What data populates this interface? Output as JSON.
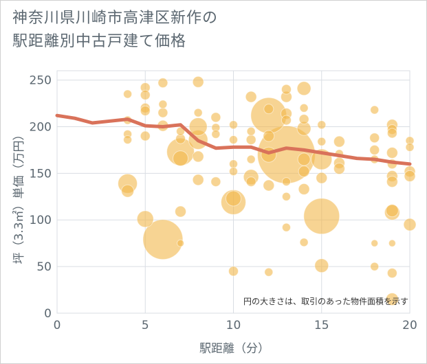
{
  "title_lines": [
    "神奈川県川崎市高津区新作の",
    "駅距離別中古戸建て価格"
  ],
  "chart_data": {
    "type": "scatter",
    "xlabel": "駅距離（分）",
    "ylabel": "坪（3.3㎡）単価（万円）",
    "xlim": [
      0,
      20
    ],
    "ylim": [
      0,
      260
    ],
    "xticks": [
      "0",
      "5",
      "10",
      "15",
      "20"
    ],
    "yticks": [
      "0",
      "50",
      "100",
      "150",
      "200",
      "250"
    ],
    "grid": true,
    "annotation": "円の大きさは、取引のあった物件面積を示す",
    "colors": {
      "bubble": "#f2b84b",
      "line": "#d9725a",
      "grid": "#d9dde3"
    },
    "trend": {
      "x": [
        0,
        1,
        2,
        3,
        4,
        5,
        6,
        7,
        8,
        9,
        10,
        11,
        12,
        13,
        14,
        15,
        16,
        17,
        18,
        19,
        20
      ],
      "y": [
        212,
        209,
        204,
        206,
        208,
        201,
        200,
        202,
        185,
        177,
        178,
        178,
        172,
        177,
        175,
        172,
        169,
        166,
        165,
        162,
        160
      ]
    },
    "points": [
      {
        "x": 4,
        "y": 235,
        "s": 6
      },
      {
        "x": 4,
        "y": 207,
        "s": 6
      },
      {
        "x": 4,
        "y": 192,
        "s": 6
      },
      {
        "x": 4,
        "y": 186,
        "s": 6
      },
      {
        "x": 4,
        "y": 139,
        "s": 14
      },
      {
        "x": 4,
        "y": 131,
        "s": 9
      },
      {
        "x": 5,
        "y": 242,
        "s": 7
      },
      {
        "x": 5,
        "y": 234,
        "s": 7
      },
      {
        "x": 5,
        "y": 220,
        "s": 7
      },
      {
        "x": 5,
        "y": 217,
        "s": 7
      },
      {
        "x": 5,
        "y": 190,
        "s": 7
      },
      {
        "x": 5,
        "y": 101,
        "s": 12
      },
      {
        "x": 6,
        "y": 247,
        "s": 7
      },
      {
        "x": 6,
        "y": 224,
        "s": 6
      },
      {
        "x": 6,
        "y": 215,
        "s": 7
      },
      {
        "x": 6,
        "y": 201,
        "s": 8
      },
      {
        "x": 6,
        "y": 79,
        "s": 29
      },
      {
        "x": 7,
        "y": 195,
        "s": 6
      },
      {
        "x": 7,
        "y": 187,
        "s": 7
      },
      {
        "x": 7,
        "y": 173,
        "s": 20
      },
      {
        "x": 7,
        "y": 166,
        "s": 11
      },
      {
        "x": 7,
        "y": 109,
        "s": 8
      },
      {
        "x": 7,
        "y": 75,
        "s": 5
      },
      {
        "x": 8,
        "y": 248,
        "s": 8
      },
      {
        "x": 8,
        "y": 215,
        "s": 6
      },
      {
        "x": 8,
        "y": 200,
        "s": 13
      },
      {
        "x": 8,
        "y": 186,
        "s": 14
      },
      {
        "x": 8,
        "y": 168,
        "s": 8
      },
      {
        "x": 8,
        "y": 143,
        "s": 8
      },
      {
        "x": 9,
        "y": 210,
        "s": 7
      },
      {
        "x": 9,
        "y": 199,
        "s": 6
      },
      {
        "x": 9,
        "y": 192,
        "s": 6
      },
      {
        "x": 9,
        "y": 141,
        "s": 7
      },
      {
        "x": 10,
        "y": 202,
        "s": 6
      },
      {
        "x": 10,
        "y": 186,
        "s": 6
      },
      {
        "x": 10,
        "y": 160,
        "s": 6
      },
      {
        "x": 10,
        "y": 152,
        "s": 6
      },
      {
        "x": 10,
        "y": 123,
        "s": 11
      },
      {
        "x": 10,
        "y": 119,
        "s": 18
      },
      {
        "x": 10,
        "y": 45,
        "s": 7
      },
      {
        "x": 11,
        "y": 232,
        "s": 8
      },
      {
        "x": 11,
        "y": 195,
        "s": 6
      },
      {
        "x": 11,
        "y": 186,
        "s": 7
      },
      {
        "x": 11,
        "y": 165,
        "s": 6
      },
      {
        "x": 11,
        "y": 146,
        "s": 11
      },
      {
        "x": 11,
        "y": 141,
        "s": 7
      },
      {
        "x": 12,
        "y": 219,
        "s": 7
      },
      {
        "x": 12,
        "y": 212,
        "s": 26
      },
      {
        "x": 12,
        "y": 190,
        "s": 8
      },
      {
        "x": 12,
        "y": 170,
        "s": 11
      },
      {
        "x": 12,
        "y": 137,
        "s": 8
      },
      {
        "x": 12,
        "y": 44,
        "s": 6
      },
      {
        "x": 13,
        "y": 240,
        "s": 7
      },
      {
        "x": 13,
        "y": 232,
        "s": 8
      },
      {
        "x": 13,
        "y": 214,
        "s": 8
      },
      {
        "x": 13,
        "y": 207,
        "s": 7
      },
      {
        "x": 13,
        "y": 170,
        "s": 42
      },
      {
        "x": 13,
        "y": 141,
        "s": 6
      },
      {
        "x": 13,
        "y": 125,
        "s": 6
      },
      {
        "x": 13,
        "y": 92,
        "s": 6
      },
      {
        "x": 14,
        "y": 241,
        "s": 10
      },
      {
        "x": 14,
        "y": 220,
        "s": 6
      },
      {
        "x": 14,
        "y": 208,
        "s": 7
      },
      {
        "x": 14,
        "y": 198,
        "s": 10
      },
      {
        "x": 14,
        "y": 165,
        "s": 9
      },
      {
        "x": 14,
        "y": 152,
        "s": 8
      },
      {
        "x": 14,
        "y": 133,
        "s": 8
      },
      {
        "x": 14,
        "y": 76,
        "s": 6
      },
      {
        "x": 15,
        "y": 202,
        "s": 6
      },
      {
        "x": 15,
        "y": 184,
        "s": 6
      },
      {
        "x": 15,
        "y": 165,
        "s": 15
      },
      {
        "x": 15,
        "y": 145,
        "s": 8
      },
      {
        "x": 15,
        "y": 104,
        "s": 26
      },
      {
        "x": 15,
        "y": 51,
        "s": 10
      },
      {
        "x": 16,
        "y": 184,
        "s": 8
      },
      {
        "x": 16,
        "y": 171,
        "s": 6
      },
      {
        "x": 16,
        "y": 161,
        "s": 8
      },
      {
        "x": 16,
        "y": 155,
        "s": 8
      },
      {
        "x": 18,
        "y": 218,
        "s": 6
      },
      {
        "x": 18,
        "y": 188,
        "s": 7
      },
      {
        "x": 18,
        "y": 175,
        "s": 7
      },
      {
        "x": 18,
        "y": 165,
        "s": 6
      },
      {
        "x": 18,
        "y": 75,
        "s": 5
      },
      {
        "x": 18,
        "y": 50,
        "s": 6
      },
      {
        "x": 19,
        "y": 202,
        "s": 8
      },
      {
        "x": 19,
        "y": 197,
        "s": 7
      },
      {
        "x": 19,
        "y": 193,
        "s": 7
      },
      {
        "x": 19,
        "y": 172,
        "s": 8
      },
      {
        "x": 19,
        "y": 160,
        "s": 7
      },
      {
        "x": 19,
        "y": 147,
        "s": 8
      },
      {
        "x": 19,
        "y": 141,
        "s": 8
      },
      {
        "x": 19,
        "y": 110,
        "s": 9
      },
      {
        "x": 19,
        "y": 108,
        "s": 11
      },
      {
        "x": 19,
        "y": 75,
        "s": 5
      },
      {
        "x": 19,
        "y": 43,
        "s": 7
      },
      {
        "x": 19,
        "y": 15,
        "s": 9
      },
      {
        "x": 20,
        "y": 185,
        "s": 6
      },
      {
        "x": 20,
        "y": 178,
        "s": 6
      },
      {
        "x": 20,
        "y": 152,
        "s": 8
      },
      {
        "x": 20,
        "y": 147,
        "s": 8
      },
      {
        "x": 20,
        "y": 95,
        "s": 9
      }
    ]
  }
}
